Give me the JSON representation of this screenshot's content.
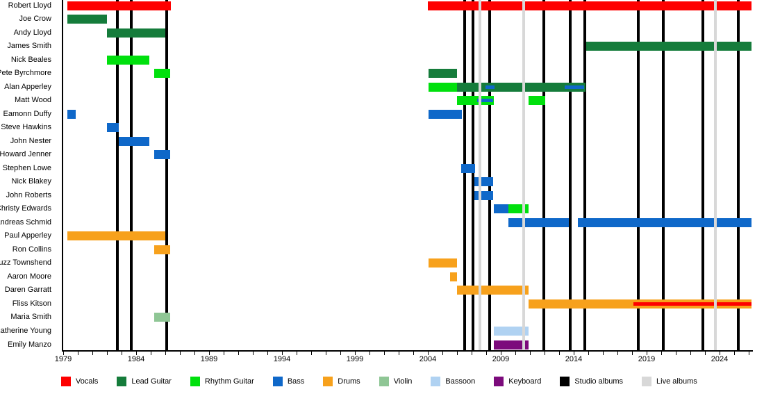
{
  "chart_data": {
    "type": "bar",
    "subtype": "band-member-timeline",
    "title": "",
    "xlabel": "",
    "ylabel": "",
    "grid": false,
    "legend_position": "bottom",
    "x_axis": {
      "min": 1979,
      "max": 2026.2,
      "major_tick_years": [
        1979,
        1984,
        1989,
        1994,
        1999,
        2004,
        2009,
        2014,
        2019,
        2024
      ],
      "major_tick_labels": [
        "1979",
        "1984",
        "1989",
        "1994",
        "1999",
        "2004",
        "2009",
        "2014",
        "2019",
        "2024"
      ],
      "minor_tick_interval_years": 1,
      "minor_tick_first": 1979,
      "minor_tick_last": 2026
    },
    "roles": {
      "vocals": {
        "label": "Vocals",
        "color": "#fe0000"
      },
      "lead_guitar": {
        "label": "Lead Guitar",
        "color": "#157c3b"
      },
      "rhythm_guitar": {
        "label": "Rhythm Guitar",
        "color": "#00e00d"
      },
      "bass": {
        "label": "Bass",
        "color": "#0f68c9"
      },
      "drums": {
        "label": "Drums",
        "color": "#f7a11c"
      },
      "violin": {
        "label": "Violin",
        "color": "#8fc695"
      },
      "bassoon": {
        "label": "Bassoon",
        "color": "#b0d2f2"
      },
      "keyboard": {
        "label": "Keyboard",
        "color": "#7c0b7c"
      },
      "studio_albums": {
        "label": "Studio albums",
        "color": "#000000"
      },
      "live_albums": {
        "label": "Live albums",
        "color": "#d8d8d8"
      }
    },
    "legend_order": [
      "vocals",
      "lead_guitar",
      "rhythm_guitar",
      "bass",
      "drums",
      "violin",
      "bassoon",
      "keyboard",
      "studio_albums",
      "live_albums"
    ],
    "members": [
      {
        "name": "Robert Lloyd",
        "segments": [
          {
            "from": 1979.3,
            "to": 1986.4,
            "role": "vocals"
          },
          {
            "from": 2004.0,
            "to": 2026.2,
            "role": "vocals"
          }
        ]
      },
      {
        "name": "Joe Crow",
        "segments": [
          {
            "from": 1979.3,
            "to": 1982.0,
            "role": "lead_guitar"
          }
        ]
      },
      {
        "name": "Andy Lloyd",
        "segments": [
          {
            "from": 1982.0,
            "to": 1986.0,
            "role": "lead_guitar"
          }
        ]
      },
      {
        "name": "James Smith",
        "segments": [
          {
            "from": 2014.85,
            "to": 2026.2,
            "role": "lead_guitar"
          }
        ]
      },
      {
        "name": "Nick Beales",
        "segments": [
          {
            "from": 1982.0,
            "to": 1984.9,
            "role": "rhythm_guitar"
          }
        ]
      },
      {
        "name": "Pete Byrchmore",
        "segments": [
          {
            "from": 1985.25,
            "to": 1986.35,
            "role": "rhythm_guitar"
          },
          {
            "from": 2004.05,
            "to": 2006.0,
            "role": "lead_guitar"
          }
        ]
      },
      {
        "name": "Alan Apperley",
        "segments": [
          {
            "from": 2004.05,
            "to": 2006.0,
            "role": "rhythm_guitar"
          },
          {
            "from": 2006.0,
            "to": 2014.8,
            "role": "lead_guitar"
          },
          {
            "from": 2007.95,
            "to": 2008.55,
            "role": "bass",
            "style": "stripe"
          },
          {
            "from": 2013.4,
            "to": 2014.7,
            "role": "bass",
            "style": "stripe"
          }
        ]
      },
      {
        "name": "Matt Wood",
        "segments": [
          {
            "from": 2006.0,
            "to": 2008.5,
            "role": "rhythm_guitar"
          },
          {
            "from": 2007.4,
            "to": 2008.5,
            "role": "bass",
            "style": "stripe"
          },
          {
            "from": 2010.9,
            "to": 2012.05,
            "role": "rhythm_guitar"
          }
        ]
      },
      {
        "name": "Eamonn Duffy",
        "segments": [
          {
            "from": 1979.3,
            "to": 1979.85,
            "role": "bass"
          },
          {
            "from": 2004.05,
            "to": 2006.35,
            "role": "bass"
          }
        ]
      },
      {
        "name": "Steve Hawkins",
        "segments": [
          {
            "from": 1982.0,
            "to": 1982.8,
            "role": "bass"
          }
        ]
      },
      {
        "name": "John Nester",
        "segments": [
          {
            "from": 1982.8,
            "to": 1984.9,
            "role": "bass"
          }
        ]
      },
      {
        "name": "Howard Jenner",
        "segments": [
          {
            "from": 1985.25,
            "to": 1986.35,
            "role": "bass"
          }
        ]
      },
      {
        "name": "Stephen Lowe",
        "segments": [
          {
            "from": 2006.3,
            "to": 2007.25,
            "role": "bass"
          }
        ]
      },
      {
        "name": "Nick Blakey",
        "segments": [
          {
            "from": 2007.2,
            "to": 2008.5,
            "role": "bass"
          }
        ]
      },
      {
        "name": "John Roberts",
        "segments": [
          {
            "from": 2007.2,
            "to": 2008.5,
            "role": "bass"
          }
        ]
      },
      {
        "name": "Christy Edwards",
        "segments": [
          {
            "from": 2008.5,
            "to": 2009.5,
            "role": "bass"
          },
          {
            "from": 2009.5,
            "to": 2010.9,
            "role": "rhythm_guitar"
          }
        ]
      },
      {
        "name": "Andreas Schmid",
        "segments": [
          {
            "from": 2009.5,
            "to": 2013.65,
            "role": "bass"
          },
          {
            "from": 2014.3,
            "to": 2026.2,
            "role": "bass"
          }
        ]
      },
      {
        "name": "Paul Apperley",
        "segments": [
          {
            "from": 1979.3,
            "to": 1986.0,
            "role": "drums"
          }
        ]
      },
      {
        "name": "Ron Collins",
        "segments": [
          {
            "from": 1985.25,
            "to": 1986.35,
            "role": "drums"
          }
        ]
      },
      {
        "name": "Fuzz Townshend",
        "segments": [
          {
            "from": 2004.05,
            "to": 2006.0,
            "role": "drums"
          }
        ]
      },
      {
        "name": "Aaron Moore",
        "segments": [
          {
            "from": 2005.5,
            "to": 2006.0,
            "role": "drums"
          }
        ]
      },
      {
        "name": "Daren Garratt",
        "segments": [
          {
            "from": 2006.0,
            "to": 2010.9,
            "role": "drums"
          }
        ]
      },
      {
        "name": "Fliss Kitson",
        "segments": [
          {
            "from": 2010.9,
            "to": 2026.2,
            "role": "drums"
          },
          {
            "from": 2018.1,
            "to": 2026.2,
            "role": "vocals",
            "style": "stripe"
          }
        ]
      },
      {
        "name": "Maria Smith",
        "segments": [
          {
            "from": 1985.25,
            "to": 1986.35,
            "role": "violin"
          }
        ]
      },
      {
        "name": "Katherine Young",
        "segments": [
          {
            "from": 2008.5,
            "to": 2010.9,
            "role": "bassoon"
          }
        ]
      },
      {
        "name": "Emily Manzo",
        "segments": [
          {
            "from": 2008.5,
            "to": 2010.9,
            "role": "keyboard"
          }
        ]
      }
    ],
    "albums": {
      "studio_years": [
        1982.7,
        1983.65,
        1986.1,
        2006.5,
        2007.1,
        2008.25,
        2011.95,
        2013.75,
        2014.75,
        2018.45,
        2020.15,
        2022.85,
        2025.3
      ],
      "live_years": [
        2007.55,
        2010.55,
        2023.7
      ]
    }
  }
}
